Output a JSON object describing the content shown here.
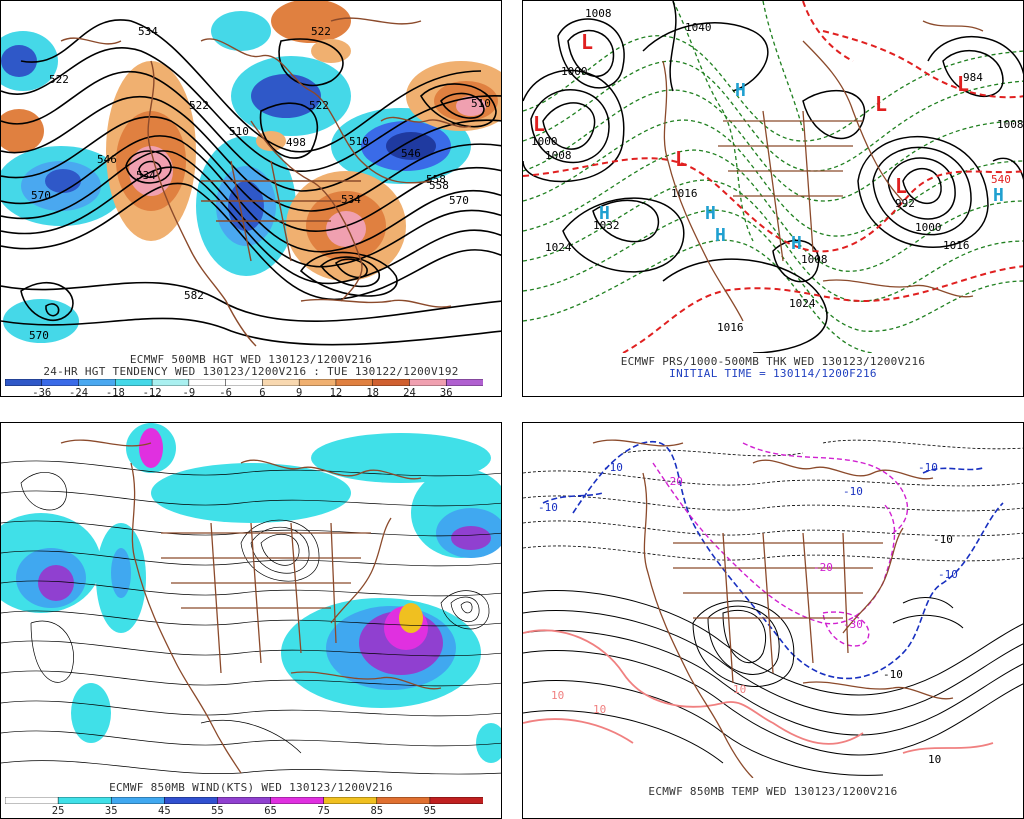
{
  "panels": {
    "p1": {
      "title": "ECMWF 500MB HGT WED 130123/1200V216",
      "subtitle": "24-HR HGT TENDENCY WED 130123/1200V216 : TUE 130122/1200V192",
      "colorbar": {
        "labels": [
          "-36",
          "-24",
          "-18",
          "-12",
          "-9",
          "-6",
          "6",
          "9",
          "12",
          "18",
          "24",
          "36"
        ],
        "colors": [
          "#2f58c8",
          "#3a6be8",
          "#4aa8f0",
          "#45d8e8",
          "#aaf0f0",
          "#ffffff",
          "#ffffff",
          "#f8d8b0",
          "#f0b070",
          "#e08040",
          "#d06030",
          "#f0a0b0",
          "#b060d0"
        ]
      },
      "contour_labels": [
        "534",
        "522",
        "510",
        "522",
        "546",
        "558",
        "570",
        "510",
        "534",
        "522",
        "498",
        "510",
        "522",
        "534",
        "546",
        "558",
        "570",
        "582",
        "570"
      ]
    },
    "p2": {
      "title": "ECMWF PRS/1000-500MB THK WED 130123/1200V216",
      "subtitle": "INITIAL TIME = 130114/1200F216",
      "low_symbol": "L",
      "high_symbol": "H",
      "pressure_labels": [
        "1008",
        "1000",
        "1040",
        "984",
        "1008",
        "1000",
        "1008",
        "1016",
        "1032",
        "1024",
        "1024",
        "1008",
        "992",
        "1000",
        "1016",
        "540",
        "1016"
      ]
    },
    "p3": {
      "title": "ECMWF 850MB WIND(KTS) WED 130123/1200V216",
      "colorbar": {
        "labels": [
          "25",
          "35",
          "45",
          "55",
          "65",
          "75",
          "85",
          "95"
        ],
        "colors": [
          "#ffffff",
          "#40e0e8",
          "#40a8f0",
          "#3050d0",
          "#9040d0",
          "#e030e0",
          "#f0c020",
          "#e07030",
          "#c02020"
        ]
      }
    },
    "p4": {
      "title": "ECMWF 850MB TEMP WED 130123/1200V216",
      "contour_labels": [
        "-10",
        "-10",
        "-10",
        "-10",
        "-10",
        "-20",
        "-20",
        "-30",
        "-10",
        "-10",
        "10",
        "10",
        "10",
        "10"
      ]
    }
  },
  "colors": {
    "coast": "#8b4a2b",
    "contour": "#000000",
    "red_dash": "#e02020",
    "green_dash": "#208020",
    "blue_dash": "#1830c0",
    "magenta_dash": "#d020d0",
    "pink_line": "#f08080"
  }
}
